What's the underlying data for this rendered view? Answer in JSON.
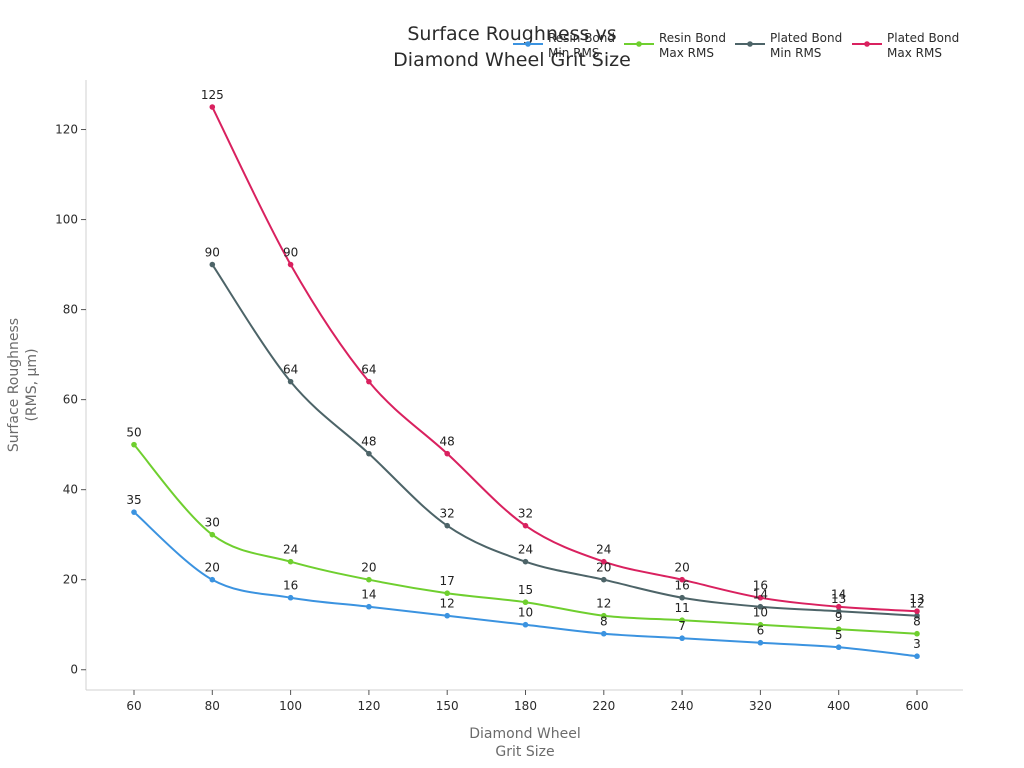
{
  "chart_data": {
    "type": "line",
    "title": "Surface Roughness vs\nDiamond Wheel Grit Size",
    "xlabel": "Diamond Wheel\nGrit Size",
    "ylabel": "Surface Roughness\n(RMS, µm)",
    "categories": [
      "60",
      "80",
      "100",
      "120",
      "150",
      "180",
      "220",
      "240",
      "320",
      "400",
      "600"
    ],
    "ylim": [
      -4.5,
      131
    ],
    "yticks": [
      0,
      20,
      40,
      60,
      80,
      100,
      120
    ],
    "grid": false,
    "legend": "top-right",
    "series": [
      {
        "name": "Resin Bond\nMin RMS",
        "color": "#3b93e0",
        "values": [
          35,
          20,
          16,
          14,
          12,
          10,
          8,
          7,
          6,
          5,
          3
        ]
      },
      {
        "name": "Resin Bond\nMax RMS",
        "color": "#6fcf2f",
        "values": [
          50,
          30,
          24,
          20,
          17,
          15,
          12,
          11,
          10,
          9,
          8
        ]
      },
      {
        "name": "Plated Bond\nMin RMS",
        "color": "#4d6468",
        "values": [
          null,
          90,
          64,
          48,
          32,
          24,
          20,
          16,
          14,
          13,
          12
        ]
      },
      {
        "name": "Plated Bond\nMax RMS",
        "color": "#d9215f",
        "values": [
          null,
          125,
          90,
          64,
          48,
          32,
          24,
          20,
          16,
          14,
          13
        ]
      }
    ]
  }
}
